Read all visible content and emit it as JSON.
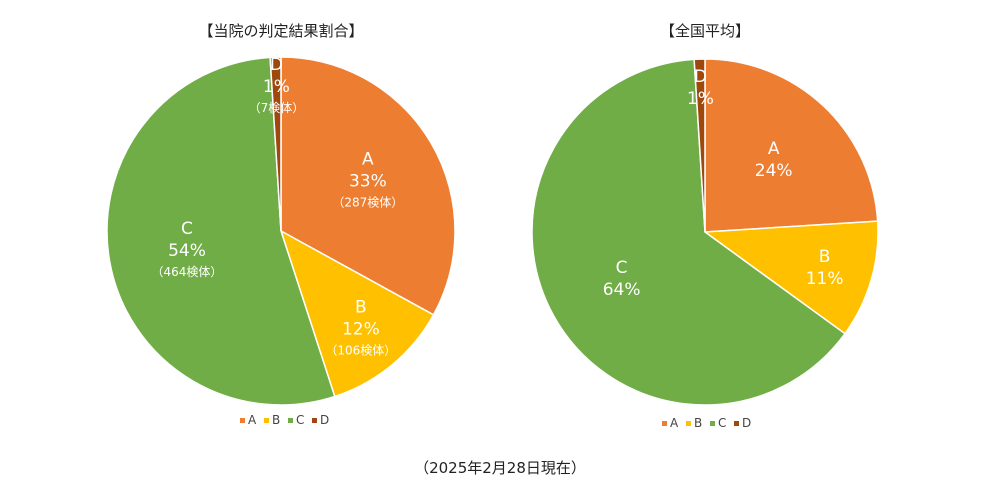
{
  "chart_data": [
    {
      "type": "pie",
      "title": "【当院の判定結果割合】",
      "categories": [
        "A",
        "B",
        "C",
        "D"
      ],
      "values": [
        33,
        12,
        54,
        1
      ],
      "percent_labels": [
        "33%",
        "12%",
        "54%",
        "1%"
      ],
      "count_labels": [
        "（287検体）",
        "（106検体）",
        "（464検体）",
        "（7検体）"
      ],
      "colors": [
        "#ED7D31",
        "#FFC000",
        "#70AD47",
        "#9E480E"
      ],
      "legend": [
        "A",
        "B",
        "C",
        "D"
      ]
    },
    {
      "type": "pie",
      "title": "【全国平均】",
      "categories": [
        "A",
        "B",
        "C",
        "D"
      ],
      "values": [
        24,
        11,
        64,
        1
      ],
      "percent_labels": [
        "24%",
        "11%",
        "64%",
        "1%"
      ],
      "colors": [
        "#ED7D31",
        "#FFC000",
        "#70AD47",
        "#9E480E"
      ],
      "legend": [
        "A",
        "B",
        "C",
        "D"
      ]
    }
  ],
  "footnote": "（2025年2月28日現在）"
}
